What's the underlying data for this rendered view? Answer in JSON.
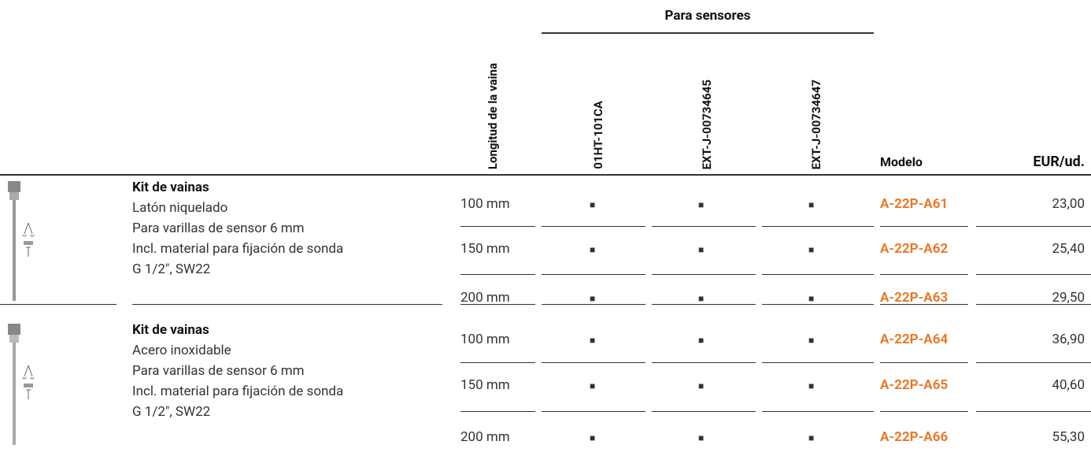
{
  "header": {
    "group_label": "Para sensores",
    "columns": [
      "Longitud de la vaina",
      "01HT-101CA",
      "EXT-J-00734645",
      "EXT-J-00734647",
      "Modelo",
      "EUR/ud."
    ]
  },
  "groups": [
    {
      "title": "Kit de vainas",
      "lines": [
        "Latón niquelado",
        "Para varillas de sensor 6 mm",
        "Incl. material para fijación de sonda",
        "G 1/2\", SW22"
      ],
      "rows": [
        [
          "100 mm",
          "■",
          "■",
          "■",
          "A-22P-A61",
          "23,00"
        ],
        [
          "150 mm",
          "■",
          "■",
          "■",
          "A-22P-A62",
          "25,40"
        ],
        [
          "200 mm",
          "■",
          "■",
          "■",
          "A-22P-A63",
          "29,50"
        ]
      ]
    },
    {
      "title": "Kit de vainas",
      "lines": [
        "Acero inoxidable",
        "Para varillas de sensor 6 mm",
        "Incl. material para fijación de sonda",
        "G 1/2\", SW22"
      ],
      "rows": [
        [
          "100 mm",
          "■",
          "■",
          "■",
          "A-22P-A64",
          "36,90"
        ],
        [
          "150 mm",
          "■",
          "■",
          "■",
          "A-22P-A65",
          "40,60"
        ],
        [
          "200 mm",
          "■",
          "■",
          "■",
          "A-22P-A66",
          "55,30"
        ]
      ]
    }
  ]
}
